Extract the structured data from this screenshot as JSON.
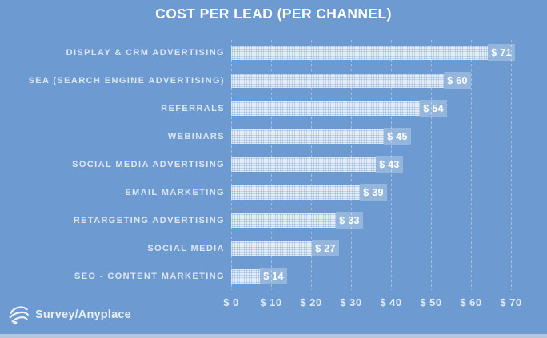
{
  "title": "COST PER LEAD (PER CHANNEL)",
  "brand": {
    "name": "Survey/Anyplace",
    "icon": "sphere-swirl-icon"
  },
  "colors": {
    "background": "#6d9bd1",
    "bar_fill": "#e3ecf7",
    "bar_pattern_dot": "#769ed2",
    "value_chip_bg": "rgba(255,255,255,0.27)",
    "title_text": "#ffffff",
    "category_label_text": "#dce6f2",
    "axis_label_text": "rgba(255,255,255,0.8)",
    "gridline": "rgba(255,255,255,0.38)",
    "bottom_strip": "#b6c5da"
  },
  "chart_data": {
    "type": "bar",
    "orientation": "horizontal",
    "title": "COST PER LEAD (PER CHANNEL)",
    "categories": [
      "DISPLAY & CRM ADVERTISING",
      "SEA (SEARCH ENGINE ADVERTISING)",
      "REFERRALS",
      "WEBINARS",
      "SOCIAL MEDIA ADVERTISING",
      "EMAIL MARKETING",
      "RETARGETING ADVERTISING",
      "SOCIAL MEDIA",
      "SEO - CONTENT MARKETING"
    ],
    "values": [
      71,
      60,
      54,
      45,
      43,
      39,
      33,
      27,
      14
    ],
    "value_labels": [
      "$ 71",
      "$ 60",
      "$ 54",
      "$ 45",
      "$ 43",
      "$ 39",
      "$ 33",
      "$ 27",
      "$ 14"
    ],
    "unit": "$",
    "xlabel": "",
    "ylabel": "",
    "xlim": [
      0,
      70
    ],
    "x_tick_values": [
      0,
      10,
      20,
      30,
      40,
      50,
      60,
      70
    ],
    "x_tick_labels": [
      "$ 0",
      "$ 10",
      "$ 20",
      "$ 30",
      "$ 40",
      "$ 50",
      "$ 60",
      "$ 70"
    ],
    "grid": "vertical",
    "legend": "none",
    "value_label_position": "inside-end-chip"
  }
}
